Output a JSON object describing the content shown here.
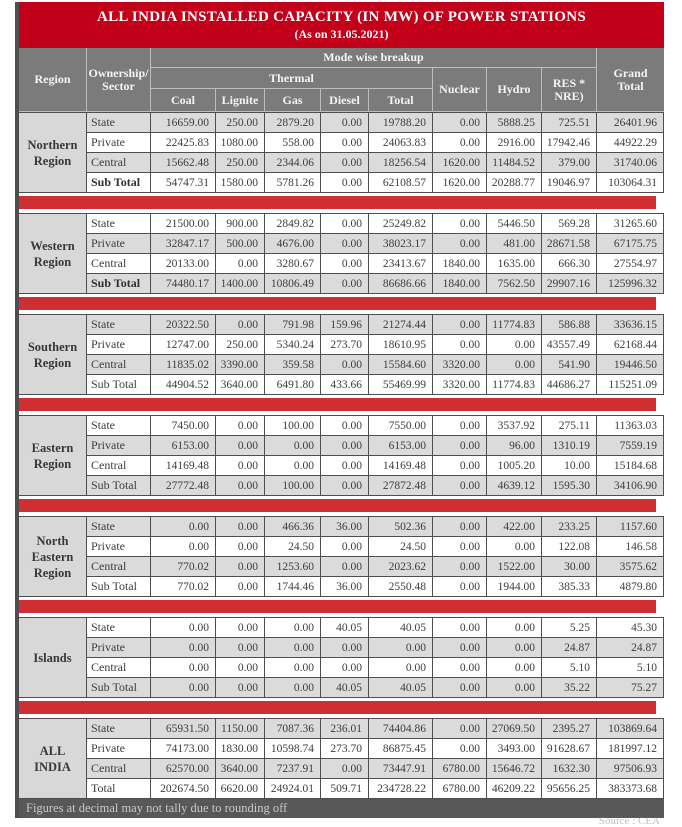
{
  "title": {
    "line1": "ALL INDIA INSTALLED CAPACITY (IN MW) OF POWER STATIONS",
    "line2": "(As on 31.05.2021)"
  },
  "table": {
    "header": {
      "region": "Region",
      "ownership": "Ownership/\nSector",
      "mode_breakup": "Mode wise breakup",
      "thermal": "Thermal",
      "coal": "Coal",
      "lignite": "Lignite",
      "gas": "Gas",
      "diesel": "Diesel",
      "total": "Total",
      "nuclear": "Nuclear",
      "hydro": "Hydro",
      "res": "RES *\nNRE)",
      "grand_total": "Grand\nTotal"
    },
    "regions": [
      {
        "id": "northern",
        "name": "Northern\nRegion",
        "rows": [
          {
            "label": "State",
            "values": [
              "16659.00",
              "250.00",
              "2879.20",
              "0.00",
              "19788.20",
              "0.00",
              "5888.25",
              "725.51",
              "26401.96"
            ]
          },
          {
            "label": "Private",
            "values": [
              "22425.83",
              "1080.00",
              "558.00",
              "0.00",
              "24063.83",
              "0.00",
              "2916.00",
              "17942.46",
              "44922.29"
            ]
          },
          {
            "label": "Central",
            "values": [
              "15662.48",
              "250.00",
              "2344.06",
              "0.00",
              "18256.54",
              "1620.00",
              "11484.52",
              "379.00",
              "31740.06"
            ]
          },
          {
            "label": "Sub Total",
            "bold": true,
            "values": [
              "54747.31",
              "1580.00",
              "5781.26",
              "0.00",
              "62108.57",
              "1620.00",
              "20288.77",
              "19046.97",
              "103064.31"
            ]
          }
        ]
      },
      {
        "id": "western",
        "name": "Western\nRegion",
        "rows": [
          {
            "label": "State",
            "values": [
              "21500.00",
              "900.00",
              "2849.82",
              "0.00",
              "25249.82",
              "0.00",
              "5446.50",
              "569.28",
              "31265.60"
            ]
          },
          {
            "label": "Private",
            "values": [
              "32847.17",
              "500.00",
              "4676.00",
              "0.00",
              "38023.17",
              "0.00",
              "481.00",
              "28671.58",
              "67175.75"
            ]
          },
          {
            "label": "Central",
            "values": [
              "20133.00",
              "0.00",
              "3280.67",
              "0.00",
              "23413.67",
              "1840.00",
              "1635.00",
              "666.30",
              "27554.97"
            ]
          },
          {
            "label": "Sub Total",
            "bold": true,
            "values": [
              "74480.17",
              "1400.00",
              "10806.49",
              "0.00",
              "86686.66",
              "1840.00",
              "7562.50",
              "29907.16",
              "125996.32"
            ]
          }
        ]
      },
      {
        "id": "southern",
        "name": "Southern\nRegion",
        "rows": [
          {
            "label": "State",
            "values": [
              "20322.50",
              "0.00",
              "791.98",
              "159.96",
              "21274.44",
              "0.00",
              "11774.83",
              "586.88",
              "33636.15"
            ]
          },
          {
            "label": "Private",
            "values": [
              "12747.00",
              "250.00",
              "5340.24",
              "273.70",
              "18610.95",
              "0.00",
              "0.00",
              "43557.49",
              "62168.44"
            ]
          },
          {
            "label": "Central",
            "values": [
              "11835.02",
              "3390.00",
              "359.58",
              "0.00",
              "15584.60",
              "3320.00",
              "0.00",
              "541.90",
              "19446.50"
            ]
          },
          {
            "label": "Sub Total",
            "values": [
              "44904.52",
              "3640.00",
              "6491.80",
              "433.66",
              "55469.99",
              "3320.00",
              "11774.83",
              "44686.27",
              "115251.09"
            ]
          }
        ]
      },
      {
        "id": "eastern",
        "name": "Eastern\nRegion",
        "rows": [
          {
            "label": "State",
            "values": [
              "7450.00",
              "0.00",
              "100.00",
              "0.00",
              "7550.00",
              "0.00",
              "3537.92",
              "275.11",
              "11363.03"
            ]
          },
          {
            "label": "Private",
            "values": [
              "6153.00",
              "0.00",
              "0.00",
              "0.00",
              "6153.00",
              "0.00",
              "96.00",
              "1310.19",
              "7559.19"
            ]
          },
          {
            "label": "Central",
            "values": [
              "14169.48",
              "0.00",
              "0.00",
              "0.00",
              "14169.48",
              "0.00",
              "1005.20",
              "10.00",
              "15184.68"
            ]
          },
          {
            "label": "Sub Total",
            "values": [
              "27772.48",
              "0.00",
              "100.00",
              "0.00",
              "27872.48",
              "0.00",
              "4639.12",
              "1595.30",
              "34106.90"
            ]
          }
        ]
      },
      {
        "id": "north-eastern",
        "name": "North\nEastern\nRegion",
        "rows": [
          {
            "label": "State",
            "values": [
              "0.00",
              "0.00",
              "466.36",
              "36.00",
              "502.36",
              "0.00",
              "422.00",
              "233.25",
              "1157.60"
            ]
          },
          {
            "label": "Private",
            "values": [
              "0.00",
              "0.00",
              "24.50",
              "0.00",
              "24.50",
              "0.00",
              "0.00",
              "122.08",
              "146.58"
            ]
          },
          {
            "label": "Central",
            "values": [
              "770.02",
              "0.00",
              "1253.60",
              "0.00",
              "2023.62",
              "0.00",
              "1522.00",
              "30.00",
              "3575.62"
            ]
          },
          {
            "label": "Sub Total",
            "values": [
              "770.02",
              "0.00",
              "1744.46",
              "36.00",
              "2550.48",
              "0.00",
              "1944.00",
              "385.33",
              "4879.80"
            ]
          }
        ]
      },
      {
        "id": "islands",
        "name": "Islands",
        "rows": [
          {
            "label": "State",
            "values": [
              "0.00",
              "0.00",
              "0.00",
              "40.05",
              "40.05",
              "0.00",
              "0.00",
              "5.25",
              "45.30"
            ]
          },
          {
            "label": "Private",
            "values": [
              "0.00",
              "0.00",
              "0.00",
              "0.00",
              "0.00",
              "0.00",
              "0.00",
              "24.87",
              "24.87"
            ]
          },
          {
            "label": "Central",
            "values": [
              "0.00",
              "0.00",
              "0.00",
              "0.00",
              "0.00",
              "0.00",
              "0.00",
              "5.10",
              "5.10"
            ]
          },
          {
            "label": "Sub Total",
            "values": [
              "0.00",
              "0.00",
              "0.00",
              "40.05",
              "40.05",
              "0.00",
              "0.00",
              "35.22",
              "75.27"
            ]
          }
        ]
      },
      {
        "id": "all-india",
        "name": "ALL\nINDIA",
        "rows": [
          {
            "label": "State",
            "values": [
              "65931.50",
              "1150.00",
              "7087.36",
              "236.01",
              "74404.86",
              "0.00",
              "27069.50",
              "2395.27",
              "103869.64"
            ]
          },
          {
            "label": "Private",
            "values": [
              "74173.00",
              "1830.00",
              "10598.74",
              "273.70",
              "86875.45",
              "0.00",
              "3493.00",
              "91628.67",
              "181997.12"
            ]
          },
          {
            "label": "Central",
            "values": [
              "62570.00",
              "3640.00",
              "7237.91",
              "0.00",
              "73447.91",
              "6780.00",
              "15646.72",
              "1632.30",
              "97506.93"
            ]
          },
          {
            "label": "Total",
            "values": [
              "202674.50",
              "6620.00",
              "24924.01",
              "509.71",
              "234728.22",
              "6780.00",
              "46209.22",
              "95656.25",
              "383373.68"
            ]
          }
        ]
      }
    ],
    "footnote": "Figures at decimal may not tally due to rounding off"
  },
  "source_note": "Source : CEA",
  "colors": {
    "banner_red": "#c20019",
    "separator_red": "#cf2f33",
    "header_gray": "#7b7b7b",
    "row_shade_gray": "#dbdbdb",
    "footnote_gray": "#585858"
  }
}
